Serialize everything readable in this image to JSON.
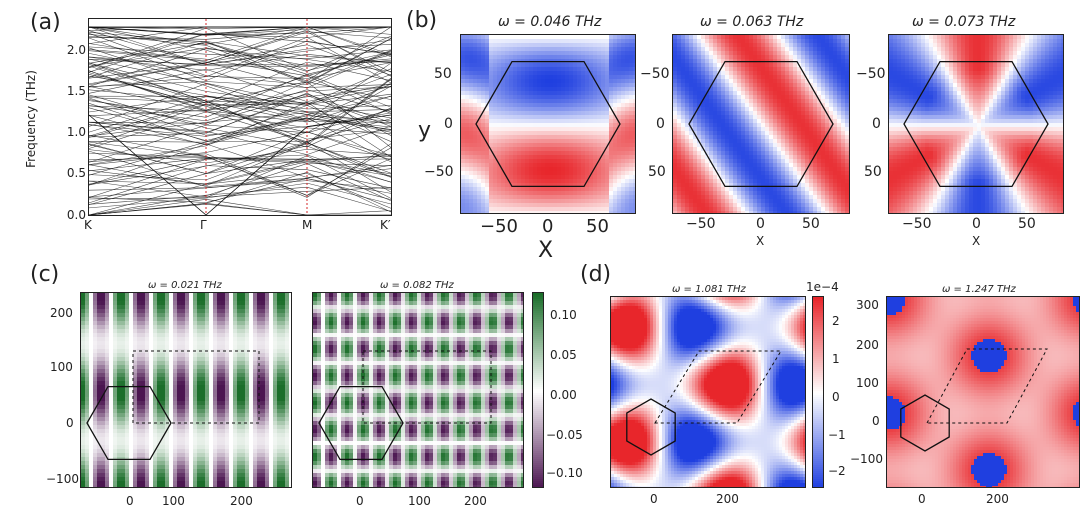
{
  "panels": {
    "a": "(a)",
    "b": "(b)",
    "c": "(c)",
    "d": "(d)"
  },
  "panel_a": {
    "ylabel": "Frequency (THz)",
    "yticks": [
      "0.0",
      "0.5",
      "1.0",
      "1.5",
      "2.0"
    ],
    "xticks": [
      "K",
      "Γ",
      "M",
      "K′"
    ]
  },
  "panel_b": {
    "titles": [
      "ω = 0.046 THz",
      "ω = 0.063 THz",
      "ω = 0.073 THz"
    ],
    "ylabel": "y",
    "xlabel": "X",
    "xlabel_small": "X",
    "yticks_first": [
      "50",
      "0",
      "−50"
    ],
    "yticks_other": [
      "−50",
      "0",
      "50"
    ],
    "xticks": [
      "−50",
      "0",
      "50"
    ]
  },
  "panel_c": {
    "titles": [
      "ω = 0.021 THz",
      "ω = 0.082 THz"
    ],
    "yticks": [
      "200",
      "100",
      "0",
      "−100"
    ],
    "xticks": [
      "0",
      "100",
      "200"
    ],
    "colorbar_ticks": [
      "0.10",
      "0.05",
      "0.00",
      "−0.05",
      "−0.10"
    ]
  },
  "panel_d": {
    "titles": [
      "ω = 1.081 THz",
      "ω = 1.247 THz"
    ],
    "cb_exponent": "1e−4",
    "colorbar_ticks": [
      "2",
      "1",
      "0",
      "−1",
      "−2"
    ],
    "yticks": [
      "300",
      "200",
      "100",
      "0",
      "−100"
    ],
    "xticks_left": [
      "0",
      "200"
    ],
    "xticks_right": [
      "0",
      "200"
    ]
  },
  "colors": {
    "red": "#e8262b",
    "blue": "#1f3fe0",
    "green": "#1b6e2a",
    "purple": "#4b1550",
    "gridline": "#d62728"
  }
}
